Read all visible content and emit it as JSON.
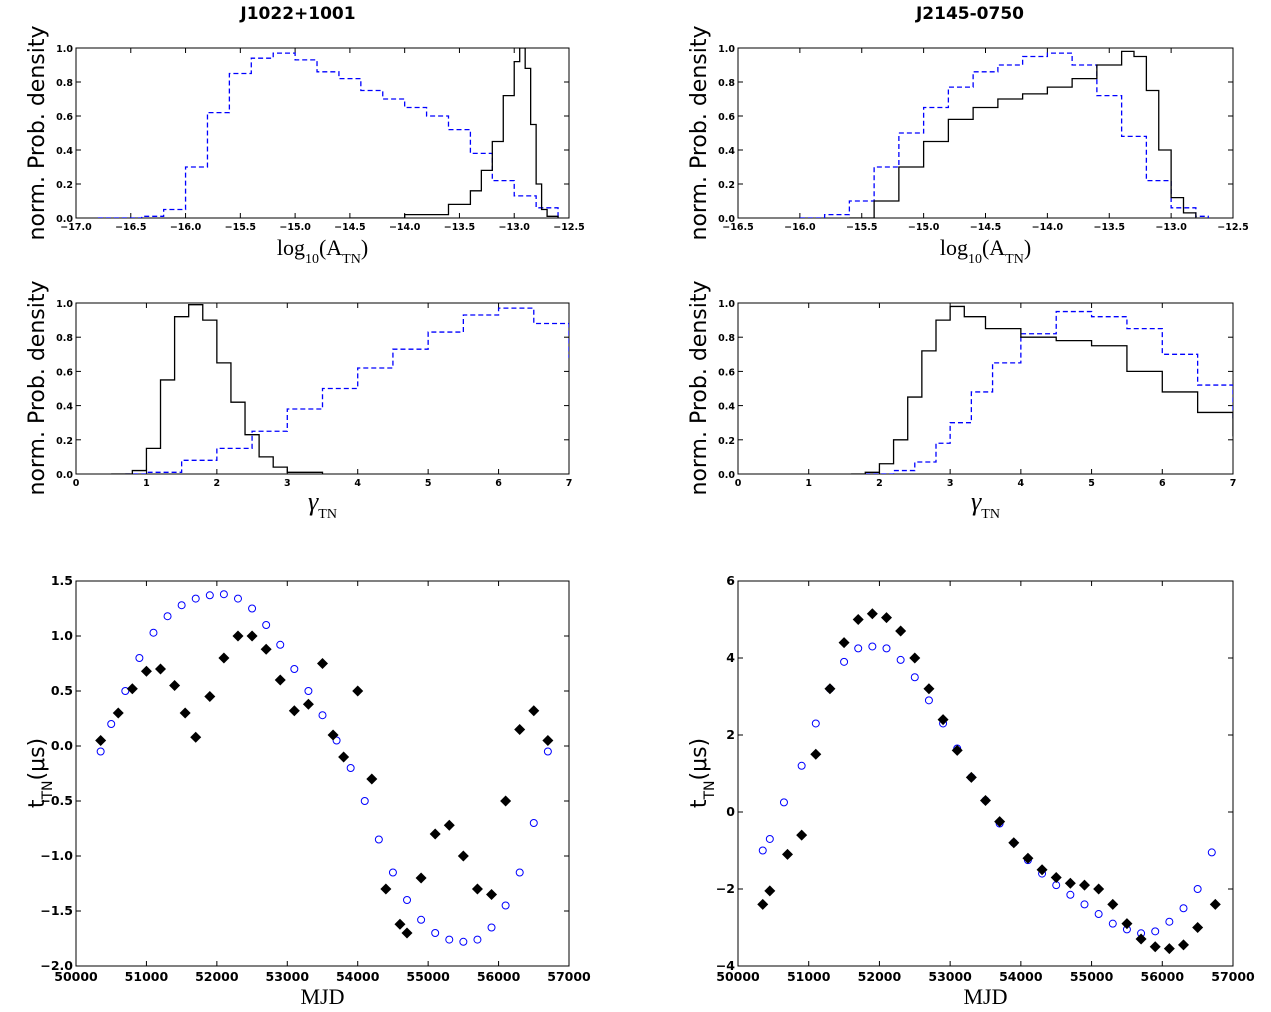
{
  "figure": {
    "titles": [
      "J1022+1001",
      "J2145-0750"
    ]
  },
  "chart_data": [
    {
      "type": "line",
      "panel": "J1022+1001 amplitude posterior",
      "xlabel": "log10(A_TN)",
      "ylabel": "norm. Prob. density",
      "xlim": [
        -17.0,
        -12.5
      ],
      "ylim": [
        0.0,
        1.0
      ],
      "xticks": [
        "−17.0",
        "−16.5",
        "−16.0",
        "−15.5",
        "−15.0",
        "−14.5",
        "−14.0",
        "−13.5",
        "−13.0",
        "−12.5"
      ],
      "yticks": [
        "0.0",
        "0.2",
        "0.4",
        "0.6",
        "0.8",
        "1.0"
      ],
      "series": [
        {
          "style": "dashed",
          "color": "#0000ff",
          "x": [
            -16.8,
            -16.6,
            -16.4,
            -16.2,
            -16.0,
            -15.8,
            -15.6,
            -15.4,
            -15.2,
            -15.0,
            -14.8,
            -14.6,
            -14.4,
            -14.2,
            -14.0,
            -13.8,
            -13.6,
            -13.4,
            -13.2,
            -13.0,
            -12.8,
            -12.6
          ],
          "y": [
            0.0,
            0.0,
            0.01,
            0.05,
            0.3,
            0.62,
            0.85,
            0.94,
            0.97,
            0.93,
            0.86,
            0.82,
            0.75,
            0.7,
            0.65,
            0.6,
            0.52,
            0.38,
            0.22,
            0.13,
            0.06,
            0.0
          ]
        },
        {
          "style": "solid",
          "color": "#000000",
          "x": [
            -14.5,
            -14.0,
            -13.6,
            -13.4,
            -13.3,
            -13.2,
            -13.1,
            -13.0,
            -12.95,
            -12.9,
            -12.85,
            -12.8,
            -12.75,
            -12.7,
            -12.6
          ],
          "y": [
            0.0,
            0.02,
            0.08,
            0.16,
            0.28,
            0.45,
            0.72,
            0.92,
            1.0,
            0.88,
            0.55,
            0.2,
            0.05,
            0.01,
            0.0
          ]
        }
      ]
    },
    {
      "type": "line",
      "panel": "J2145-0750 amplitude posterior",
      "xlabel": "log10(A_TN)",
      "ylabel": "norm. Prob. density",
      "xlim": [
        -16.5,
        -12.5
      ],
      "ylim": [
        0.0,
        1.0
      ],
      "xticks": [
        "−16.5",
        "−16.0",
        "−15.5",
        "−15.0",
        "−14.5",
        "−14.0",
        "−13.5",
        "−13.0",
        "−12.5"
      ],
      "yticks": [
        "0.0",
        "0.2",
        "0.4",
        "0.6",
        "0.8",
        "1.0"
      ],
      "series": [
        {
          "style": "dashed",
          "color": "#0000ff",
          "x": [
            -16.0,
            -15.8,
            -15.6,
            -15.4,
            -15.2,
            -15.0,
            -14.8,
            -14.6,
            -14.4,
            -14.2,
            -14.0,
            -13.8,
            -13.6,
            -13.4,
            -13.2,
            -13.0,
            -12.8,
            -12.7
          ],
          "y": [
            0.0,
            0.02,
            0.1,
            0.3,
            0.5,
            0.65,
            0.77,
            0.86,
            0.9,
            0.95,
            0.97,
            0.9,
            0.72,
            0.48,
            0.22,
            0.06,
            0.01,
            0.0
          ]
        },
        {
          "style": "solid",
          "color": "#000000",
          "x": [
            -15.6,
            -15.4,
            -15.2,
            -15.0,
            -14.8,
            -14.6,
            -14.4,
            -14.2,
            -14.0,
            -13.8,
            -13.6,
            -13.4,
            -13.3,
            -13.2,
            -13.1,
            -13.0,
            -12.9,
            -12.8
          ],
          "y": [
            0.0,
            0.1,
            0.3,
            0.45,
            0.58,
            0.65,
            0.7,
            0.73,
            0.77,
            0.82,
            0.9,
            0.98,
            0.95,
            0.75,
            0.4,
            0.12,
            0.03,
            0.0
          ]
        }
      ]
    },
    {
      "type": "line",
      "panel": "J1022+1001 spectral index posterior",
      "xlabel": "γ_TN",
      "ylabel": "norm. Prob. density",
      "xlim": [
        0,
        7
      ],
      "ylim": [
        0.0,
        1.0
      ],
      "xticks": [
        "0",
        "1",
        "2",
        "3",
        "4",
        "5",
        "6",
        "7"
      ],
      "yticks": [
        "0.0",
        "0.2",
        "0.4",
        "0.6",
        "0.8",
        "1.0"
      ],
      "series": [
        {
          "style": "dashed",
          "color": "#0000ff",
          "x": [
            0.7,
            1.0,
            1.5,
            2.0,
            2.5,
            3.0,
            3.5,
            4.0,
            4.5,
            5.0,
            5.5,
            6.0,
            6.5,
            7.0
          ],
          "y": [
            0.0,
            0.01,
            0.08,
            0.15,
            0.25,
            0.38,
            0.5,
            0.62,
            0.73,
            0.83,
            0.93,
            0.97,
            0.88,
            0.68
          ]
        },
        {
          "style": "solid",
          "color": "#000000",
          "x": [
            0.5,
            0.8,
            1.0,
            1.2,
            1.4,
            1.6,
            1.8,
            2.0,
            2.2,
            2.4,
            2.6,
            2.8,
            3.0,
            3.5
          ],
          "y": [
            0.0,
            0.02,
            0.15,
            0.55,
            0.92,
            0.99,
            0.9,
            0.65,
            0.42,
            0.23,
            0.1,
            0.04,
            0.01,
            0.0
          ]
        }
      ]
    },
    {
      "type": "line",
      "panel": "J2145-0750 spectral index posterior",
      "xlabel": "γ_TN",
      "ylabel": "norm. Prob. density",
      "xlim": [
        0,
        7
      ],
      "ylim": [
        0.0,
        1.0
      ],
      "xticks": [
        "0",
        "1",
        "2",
        "3",
        "4",
        "5",
        "6",
        "7"
      ],
      "yticks": [
        "0.0",
        "0.2",
        "0.4",
        "0.6",
        "0.8",
        "1.0"
      ],
      "series": [
        {
          "style": "dashed",
          "color": "#0000ff",
          "x": [
            1.8,
            2.2,
            2.5,
            2.8,
            3.0,
            3.3,
            3.6,
            4.0,
            4.5,
            5.0,
            5.5,
            6.0,
            6.5,
            7.0
          ],
          "y": [
            0.0,
            0.02,
            0.07,
            0.18,
            0.3,
            0.48,
            0.65,
            0.82,
            0.95,
            0.92,
            0.85,
            0.7,
            0.52,
            0.32
          ]
        },
        {
          "style": "solid",
          "color": "#000000",
          "x": [
            1.6,
            1.8,
            2.0,
            2.2,
            2.4,
            2.6,
            2.8,
            3.0,
            3.2,
            3.5,
            4.0,
            4.5,
            5.0,
            5.5,
            6.0,
            6.5,
            7.0
          ],
          "y": [
            0.0,
            0.01,
            0.06,
            0.2,
            0.45,
            0.72,
            0.9,
            0.98,
            0.92,
            0.85,
            0.8,
            0.78,
            0.75,
            0.6,
            0.48,
            0.36,
            0.22
          ]
        }
      ]
    },
    {
      "type": "scatter",
      "panel": "J1022+1001 time-domain realization",
      "xlabel": "MJD",
      "ylabel": "t_TN(μs)",
      "xlim": [
        50000,
        57000
      ],
      "ylim": [
        -2.0,
        1.5
      ],
      "xticks": [
        "50000",
        "51000",
        "52000",
        "53000",
        "54000",
        "55000",
        "56000",
        "57000"
      ],
      "yticks": [
        "−2.0",
        "−1.5",
        "−1.0",
        "−0.5",
        "0.0",
        "0.5",
        "1.0",
        "1.5"
      ],
      "series": [
        {
          "marker": "open-circle",
          "color": "#0000ff",
          "x": [
            50350,
            50500,
            50700,
            50900,
            51100,
            51300,
            51500,
            51700,
            51900,
            52100,
            52300,
            52500,
            52700,
            52900,
            53100,
            53300,
            53500,
            53700,
            53900,
            54100,
            54300,
            54500,
            54700,
            54900,
            55100,
            55300,
            55500,
            55700,
            55900,
            56100,
            56300,
            56500,
            56700
          ],
          "y": [
            -0.05,
            0.2,
            0.5,
            0.8,
            1.03,
            1.18,
            1.28,
            1.34,
            1.37,
            1.38,
            1.34,
            1.25,
            1.1,
            0.92,
            0.7,
            0.5,
            0.28,
            0.05,
            -0.2,
            -0.5,
            -0.85,
            -1.15,
            -1.4,
            -1.58,
            -1.7,
            -1.76,
            -1.78,
            -1.76,
            -1.65,
            -1.45,
            -1.15,
            -0.7,
            -0.05
          ]
        },
        {
          "marker": "filled-diamond",
          "color": "#000000",
          "x": [
            50350,
            50600,
            50800,
            51000,
            51200,
            51400,
            51550,
            51700,
            51900,
            52100,
            52300,
            52500,
            52700,
            52900,
            53100,
            53300,
            53500,
            53650,
            53800,
            54000,
            54200,
            54400,
            54600,
            54700,
            54900,
            55100,
            55300,
            55500,
            55700,
            55900,
            56100,
            56300,
            56500,
            56700
          ],
          "y": [
            0.05,
            0.3,
            0.52,
            0.68,
            0.7,
            0.55,
            0.3,
            0.08,
            0.45,
            0.8,
            1.0,
            1.0,
            0.88,
            0.6,
            0.32,
            0.38,
            0.75,
            0.1,
            -0.1,
            0.5,
            -0.3,
            -1.3,
            -1.62,
            -1.7,
            -1.2,
            -0.8,
            -0.72,
            -1.0,
            -1.3,
            -1.35,
            -0.5,
            0.15,
            0.32,
            0.05
          ]
        }
      ]
    },
    {
      "type": "scatter",
      "panel": "J2145-0750 time-domain realization",
      "xlabel": "MJD",
      "ylabel": "t_TN(μs)",
      "xlim": [
        50000,
        57000
      ],
      "ylim": [
        -4,
        6
      ],
      "xticks": [
        "50000",
        "51000",
        "52000",
        "53000",
        "54000",
        "55000",
        "56000",
        "57000"
      ],
      "yticks": [
        "−4",
        "−2",
        "0",
        "2",
        "4",
        "6"
      ],
      "series": [
        {
          "marker": "open-circle",
          "color": "#0000ff",
          "x": [
            50350,
            50450,
            50650,
            50900,
            51100,
            51300,
            51500,
            51700,
            51900,
            52100,
            52300,
            52500,
            52700,
            52900,
            53100,
            53300,
            53500,
            53700,
            53900,
            54100,
            54300,
            54500,
            54700,
            54900,
            55100,
            55300,
            55500,
            55700,
            55900,
            56100,
            56300,
            56500,
            56700
          ],
          "y": [
            -1.0,
            -0.7,
            0.25,
            1.2,
            2.3,
            3.2,
            3.9,
            4.25,
            4.3,
            4.25,
            3.95,
            3.5,
            2.9,
            2.3,
            1.65,
            0.9,
            0.3,
            -0.3,
            -0.8,
            -1.25,
            -1.6,
            -1.9,
            -2.15,
            -2.4,
            -2.65,
            -2.9,
            -3.05,
            -3.15,
            -3.1,
            -2.85,
            -2.5,
            -2.0,
            -1.05
          ]
        },
        {
          "marker": "filled-diamond",
          "color": "#000000",
          "x": [
            50350,
            50450,
            50700,
            50900,
            51100,
            51300,
            51500,
            51700,
            51900,
            52100,
            52300,
            52500,
            52700,
            52900,
            53100,
            53300,
            53500,
            53700,
            53900,
            54100,
            54300,
            54500,
            54700,
            54900,
            55100,
            55300,
            55500,
            55700,
            55900,
            56100,
            56300,
            56500,
            56750
          ],
          "y": [
            -2.4,
            -2.05,
            -1.1,
            -0.6,
            1.5,
            3.2,
            4.4,
            5.0,
            5.15,
            5.05,
            4.7,
            4.0,
            3.2,
            2.4,
            1.6,
            0.9,
            0.3,
            -0.25,
            -0.8,
            -1.2,
            -1.5,
            -1.7,
            -1.85,
            -1.9,
            -2.0,
            -2.4,
            -2.9,
            -3.3,
            -3.5,
            -3.55,
            -3.45,
            -3.0,
            -2.4
          ]
        }
      ]
    }
  ]
}
